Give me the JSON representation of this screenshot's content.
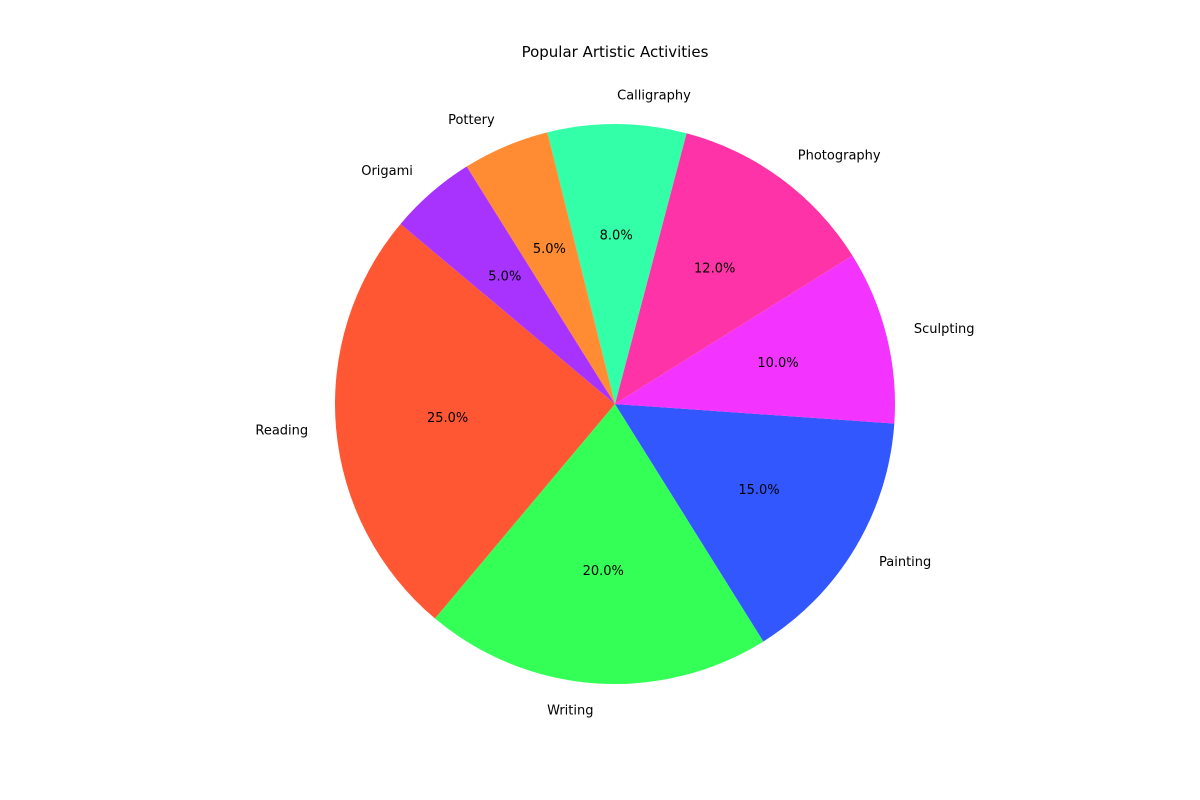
{
  "chart_data": {
    "type": "pie",
    "title": "Popular Artistic Activities",
    "categories": [
      "Reading",
      "Writing",
      "Painting",
      "Sculpting",
      "Photography",
      "Calligraphy",
      "Pottery",
      "Origami"
    ],
    "values": [
      25,
      20,
      15,
      10,
      12,
      8,
      5,
      5
    ],
    "percent_labels": [
      "25.0%",
      "20.0%",
      "15.0%",
      "10.0%",
      "12.0%",
      "8.0%",
      "5.0%",
      "5.0%"
    ],
    "colors": [
      "#FF5733",
      "#33FF57",
      "#3357FF",
      "#F333FF",
      "#FF33A8",
      "#33FFA8",
      "#FF8C33",
      "#A833FF"
    ],
    "start_angle_deg": 140,
    "direction": "counterclockwise",
    "legend": "none",
    "grid": false
  }
}
